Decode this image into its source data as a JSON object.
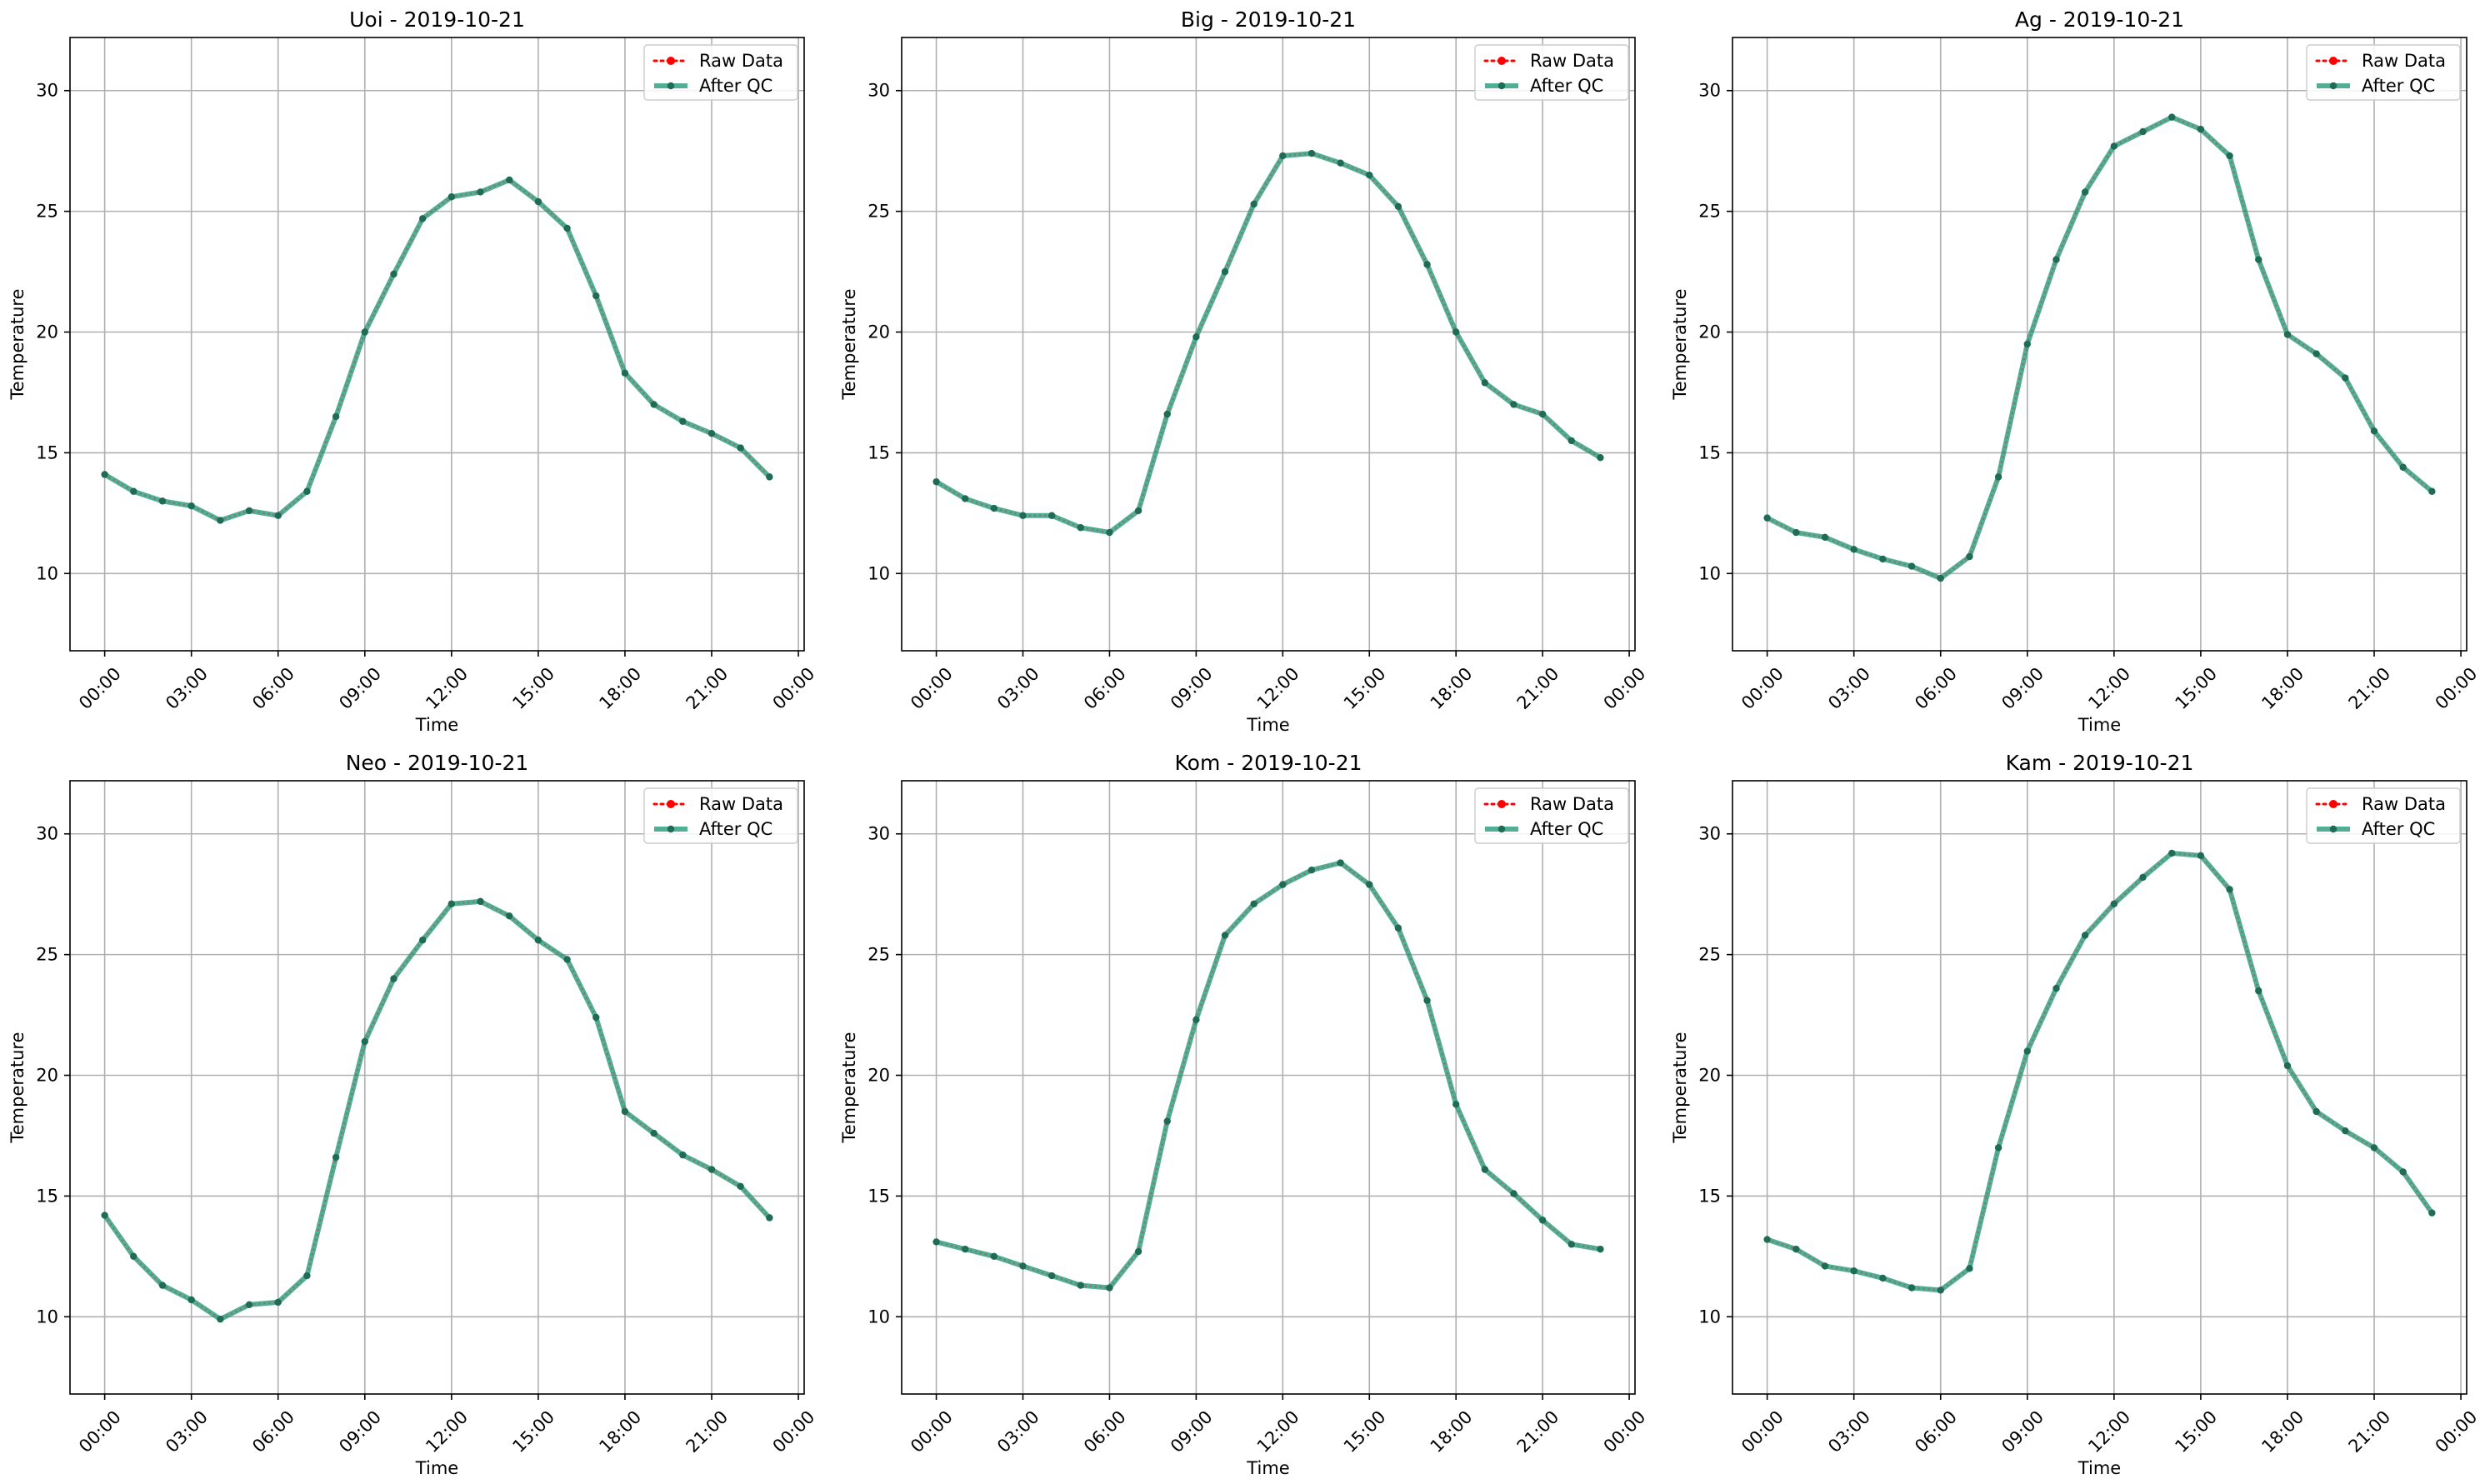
{
  "figure": {
    "xlabel": "Time",
    "ylabel": "Temperature",
    "legend": [
      "Raw Data",
      "After QC"
    ],
    "legend_position": "top-right",
    "grid": true,
    "colors": {
      "raw_data": "#ff0000",
      "after_qc": "#2a9d7e",
      "marker": "#1f6b55",
      "grid": "#b0b0b0",
      "axes": "#000000"
    }
  },
  "chart_data": [
    {
      "type": "line",
      "title": "Uoi - 2019-10-21",
      "xlabel": "Time",
      "ylabel": "Temperature",
      "x": [
        "00:00",
        "01:00",
        "02:00",
        "03:00",
        "04:00",
        "05:00",
        "06:00",
        "07:00",
        "08:00",
        "09:00",
        "10:00",
        "11:00",
        "12:00",
        "13:00",
        "14:00",
        "15:00",
        "16:00",
        "17:00",
        "18:00",
        "19:00",
        "20:00",
        "21:00",
        "22:00",
        "23:00"
      ],
      "xticks": [
        "00:00",
        "03:00",
        "06:00",
        "09:00",
        "12:00",
        "15:00",
        "18:00",
        "21:00",
        "00:00"
      ],
      "yticks": [
        10,
        15,
        20,
        25,
        30
      ],
      "ylim": [
        6.8,
        32.2
      ],
      "legend_position": "top-right",
      "grid": true,
      "series": [
        {
          "name": "Raw Data",
          "values": [
            14.1,
            13.4,
            13.0,
            12.8,
            12.2,
            12.6,
            12.4,
            13.4,
            16.5,
            20.0,
            22.4,
            24.7,
            25.6,
            25.8,
            26.3,
            25.4,
            24.3,
            21.5,
            18.3,
            17.0,
            16.3,
            15.8,
            15.2,
            14.0
          ]
        },
        {
          "name": "After QC",
          "values": [
            14.1,
            13.4,
            13.0,
            12.8,
            12.2,
            12.6,
            12.4,
            13.4,
            16.5,
            20.0,
            22.4,
            24.7,
            25.6,
            25.8,
            26.3,
            25.4,
            24.3,
            21.5,
            18.3,
            17.0,
            16.3,
            15.8,
            15.2,
            14.0
          ]
        }
      ]
    },
    {
      "type": "line",
      "title": "Big - 2019-10-21",
      "xlabel": "Time",
      "ylabel": "Temperature",
      "x": [
        "00:00",
        "01:00",
        "02:00",
        "03:00",
        "04:00",
        "05:00",
        "06:00",
        "07:00",
        "08:00",
        "09:00",
        "10:00",
        "11:00",
        "12:00",
        "13:00",
        "14:00",
        "15:00",
        "16:00",
        "17:00",
        "18:00",
        "19:00",
        "20:00",
        "21:00",
        "22:00",
        "23:00"
      ],
      "xticks": [
        "00:00",
        "03:00",
        "06:00",
        "09:00",
        "12:00",
        "15:00",
        "18:00",
        "21:00",
        "00:00"
      ],
      "yticks": [
        10,
        15,
        20,
        25,
        30
      ],
      "ylim": [
        6.8,
        32.2
      ],
      "legend_position": "top-right",
      "grid": true,
      "series": [
        {
          "name": "Raw Data",
          "values": [
            13.8,
            13.1,
            12.7,
            12.4,
            12.4,
            11.9,
            11.7,
            12.6,
            16.6,
            19.8,
            22.5,
            25.3,
            27.3,
            27.4,
            27.0,
            26.5,
            25.2,
            22.8,
            20.0,
            17.9,
            17.0,
            16.6,
            15.5,
            14.8
          ]
        },
        {
          "name": "After QC",
          "values": [
            13.8,
            13.1,
            12.7,
            12.4,
            12.4,
            11.9,
            11.7,
            12.6,
            16.6,
            19.8,
            22.5,
            25.3,
            27.3,
            27.4,
            27.0,
            26.5,
            25.2,
            22.8,
            20.0,
            17.9,
            17.0,
            16.6,
            15.5,
            14.8
          ]
        }
      ]
    },
    {
      "type": "line",
      "title": "Ag - 2019-10-21",
      "xlabel": "Time",
      "ylabel": "Temperature",
      "x": [
        "00:00",
        "01:00",
        "02:00",
        "03:00",
        "04:00",
        "05:00",
        "06:00",
        "07:00",
        "08:00",
        "09:00",
        "10:00",
        "11:00",
        "12:00",
        "13:00",
        "14:00",
        "15:00",
        "16:00",
        "17:00",
        "18:00",
        "19:00",
        "20:00",
        "21:00",
        "22:00",
        "23:00"
      ],
      "xticks": [
        "00:00",
        "03:00",
        "06:00",
        "09:00",
        "12:00",
        "15:00",
        "18:00",
        "21:00",
        "00:00"
      ],
      "yticks": [
        10,
        15,
        20,
        25,
        30
      ],
      "ylim": [
        6.8,
        32.2
      ],
      "legend_position": "top-right",
      "grid": true,
      "series": [
        {
          "name": "Raw Data",
          "values": [
            12.3,
            11.7,
            11.5,
            11.0,
            10.6,
            10.3,
            9.8,
            10.7,
            14.0,
            19.5,
            23.0,
            25.8,
            27.7,
            28.3,
            28.9,
            28.4,
            27.3,
            23.0,
            19.9,
            19.1,
            18.1,
            15.9,
            14.4,
            13.4
          ]
        },
        {
          "name": "After QC",
          "values": [
            12.3,
            11.7,
            11.5,
            11.0,
            10.6,
            10.3,
            9.8,
            10.7,
            14.0,
            19.5,
            23.0,
            25.8,
            27.7,
            28.3,
            28.9,
            28.4,
            27.3,
            23.0,
            19.9,
            19.1,
            18.1,
            15.9,
            14.4,
            13.4
          ]
        }
      ]
    },
    {
      "type": "line",
      "title": "Neo - 2019-10-21",
      "xlabel": "Time",
      "ylabel": "Temperature",
      "x": [
        "00:00",
        "01:00",
        "02:00",
        "03:00",
        "04:00",
        "05:00",
        "06:00",
        "07:00",
        "08:00",
        "09:00",
        "10:00",
        "11:00",
        "12:00",
        "13:00",
        "14:00",
        "15:00",
        "16:00",
        "17:00",
        "18:00",
        "19:00",
        "20:00",
        "21:00",
        "22:00",
        "23:00"
      ],
      "xticks": [
        "00:00",
        "03:00",
        "06:00",
        "09:00",
        "12:00",
        "15:00",
        "18:00",
        "21:00",
        "00:00"
      ],
      "yticks": [
        10,
        15,
        20,
        25,
        30
      ],
      "ylim": [
        6.8,
        32.2
      ],
      "legend_position": "top-right",
      "grid": true,
      "series": [
        {
          "name": "Raw Data",
          "values": [
            14.2,
            12.5,
            11.3,
            10.7,
            9.9,
            10.5,
            10.6,
            11.7,
            16.6,
            21.4,
            24.0,
            25.6,
            27.1,
            27.2,
            26.6,
            25.6,
            24.8,
            22.4,
            18.5,
            17.6,
            16.7,
            16.1,
            15.4,
            14.1
          ]
        },
        {
          "name": "After QC",
          "values": [
            14.2,
            12.5,
            11.3,
            10.7,
            9.9,
            10.5,
            10.6,
            11.7,
            16.6,
            21.4,
            24.0,
            25.6,
            27.1,
            27.2,
            26.6,
            25.6,
            24.8,
            22.4,
            18.5,
            17.6,
            16.7,
            16.1,
            15.4,
            14.1
          ]
        }
      ]
    },
    {
      "type": "line",
      "title": "Kom - 2019-10-21",
      "xlabel": "Time",
      "ylabel": "Temperature",
      "x": [
        "00:00",
        "01:00",
        "02:00",
        "03:00",
        "04:00",
        "05:00",
        "06:00",
        "07:00",
        "08:00",
        "09:00",
        "10:00",
        "11:00",
        "12:00",
        "13:00",
        "14:00",
        "15:00",
        "16:00",
        "17:00",
        "18:00",
        "19:00",
        "20:00",
        "21:00",
        "22:00",
        "23:00"
      ],
      "xticks": [
        "00:00",
        "03:00",
        "06:00",
        "09:00",
        "12:00",
        "15:00",
        "18:00",
        "21:00",
        "00:00"
      ],
      "yticks": [
        10,
        15,
        20,
        25,
        30
      ],
      "ylim": [
        6.8,
        32.2
      ],
      "legend_position": "top-right",
      "grid": true,
      "series": [
        {
          "name": "Raw Data",
          "values": [
            13.1,
            12.8,
            12.5,
            12.1,
            11.7,
            11.3,
            11.2,
            12.7,
            18.1,
            22.3,
            25.8,
            27.1,
            27.9,
            28.5,
            28.8,
            27.9,
            26.1,
            23.1,
            18.8,
            16.1,
            15.1,
            14.0,
            13.0,
            12.8
          ]
        },
        {
          "name": "After QC",
          "values": [
            13.1,
            12.8,
            12.5,
            12.1,
            11.7,
            11.3,
            11.2,
            12.7,
            18.1,
            22.3,
            25.8,
            27.1,
            27.9,
            28.5,
            28.8,
            27.9,
            26.1,
            23.1,
            18.8,
            16.1,
            15.1,
            14.0,
            13.0,
            12.8
          ]
        }
      ]
    },
    {
      "type": "line",
      "title": "Kam - 2019-10-21",
      "xlabel": "Time",
      "ylabel": "Temperature",
      "x": [
        "00:00",
        "01:00",
        "02:00",
        "03:00",
        "04:00",
        "05:00",
        "06:00",
        "07:00",
        "08:00",
        "09:00",
        "10:00",
        "11:00",
        "12:00",
        "13:00",
        "14:00",
        "15:00",
        "16:00",
        "17:00",
        "18:00",
        "19:00",
        "20:00",
        "21:00",
        "22:00",
        "23:00"
      ],
      "xticks": [
        "00:00",
        "03:00",
        "06:00",
        "09:00",
        "12:00",
        "15:00",
        "18:00",
        "21:00",
        "00:00"
      ],
      "yticks": [
        10,
        15,
        20,
        25,
        30
      ],
      "ylim": [
        6.8,
        32.2
      ],
      "legend_position": "top-right",
      "grid": true,
      "series": [
        {
          "name": "Raw Data",
          "values": [
            13.2,
            12.8,
            12.1,
            11.9,
            11.6,
            11.2,
            11.1,
            12.0,
            17.0,
            21.0,
            23.6,
            25.8,
            27.1,
            28.2,
            29.2,
            29.1,
            27.7,
            23.5,
            20.4,
            18.5,
            17.7,
            17.0,
            16.0,
            14.3
          ]
        },
        {
          "name": "After QC",
          "values": [
            13.2,
            12.8,
            12.1,
            11.9,
            11.6,
            11.2,
            11.1,
            12.0,
            17.0,
            21.0,
            23.6,
            25.8,
            27.1,
            28.2,
            29.2,
            29.1,
            27.7,
            23.5,
            20.4,
            18.5,
            17.7,
            17.0,
            16.0,
            14.3
          ]
        }
      ]
    }
  ]
}
